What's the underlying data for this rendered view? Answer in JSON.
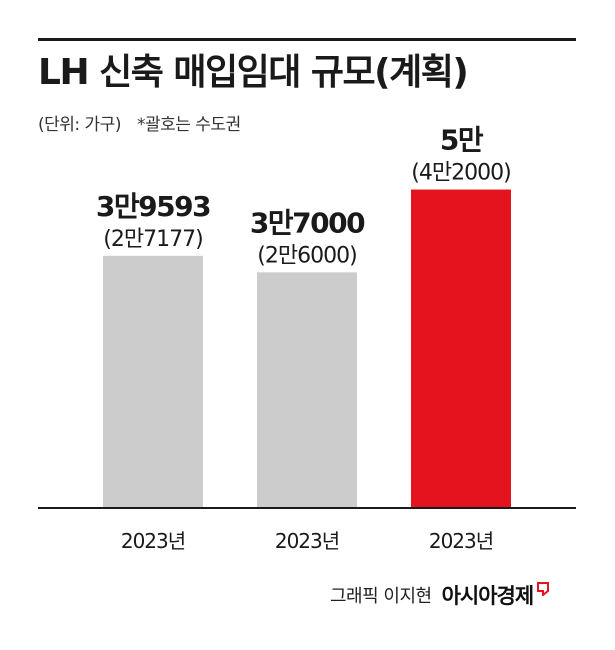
{
  "header": {
    "title": "LH 신축 매입임대 규모(계획)",
    "unit": "(단위: 가구)",
    "note": "*괄호는 수도권"
  },
  "chart_data": {
    "type": "bar",
    "title": "LH 신축 매입임대 규모(계획)",
    "xlabel": "",
    "ylabel": "",
    "categories": [
      "2023년",
      "2023년",
      "2023년"
    ],
    "values": [
      39593,
      37000,
      50000
    ],
    "values_capital_region": [
      27177,
      26000,
      42000
    ],
    "labels": [
      "3만9593",
      "3만7000",
      "5만"
    ],
    "sublabels": [
      "(2만7177)",
      "(2만6000)",
      "(4만2000)"
    ],
    "colors": [
      "#cccccc",
      "#cccccc",
      "#e4141e"
    ],
    "ylim": [
      0,
      51500
    ],
    "grid": false,
    "legend": "none"
  },
  "credit": {
    "author": "그래픽 이지현",
    "brand": "아시아경제",
    "brand_mark_color": "#e4141e"
  }
}
